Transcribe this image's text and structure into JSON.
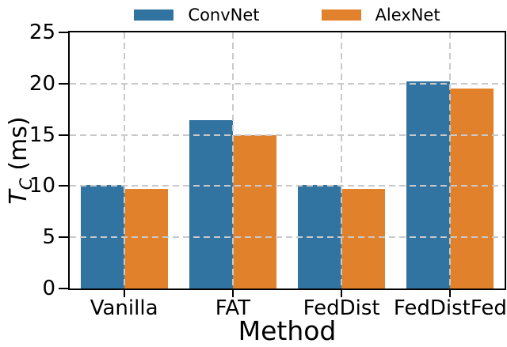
{
  "chart_data": {
    "type": "bar",
    "categories": [
      "Vanilla",
      "FAT",
      "FedDist",
      "FedDistFed"
    ],
    "series": [
      {
        "name": "ConvNet",
        "color": "#3274a1",
        "values": [
          10.1,
          16.4,
          10.1,
          20.2
        ]
      },
      {
        "name": "AlexNet",
        "color": "#e1812c",
        "values": [
          9.7,
          15.0,
          9.7,
          19.5
        ]
      }
    ],
    "xlabel": "Method",
    "ylabel": {
      "main": "T",
      "sub": "C",
      "unit": " (ms)"
    },
    "ylim": [
      0,
      25
    ],
    "yticks": [
      0,
      5,
      10,
      15,
      20,
      25
    ],
    "grid": {
      "on": true,
      "style": "dashed",
      "color": "#c9c9c9"
    },
    "legend_position": "top-center",
    "axis_color": "#000000",
    "background": "#ffffff"
  }
}
